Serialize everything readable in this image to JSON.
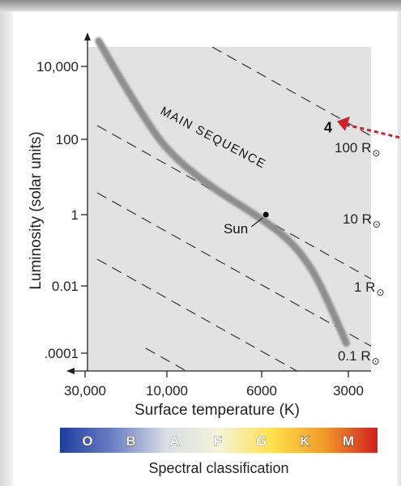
{
  "chart_data": {
    "type": "scatter",
    "xlabel": "Surface temperature (K)",
    "ylabel": "Luminosity (solar units)",
    "x_ticks": [
      "30,000",
      "10,000",
      "6000",
      "3000"
    ],
    "x_tick_values": [
      30000,
      10000,
      6000,
      3000
    ],
    "xlim": [
      40000,
      2500
    ],
    "x_scale": "log-reversed",
    "y_ticks": [
      "10,000",
      "100",
      "1",
      "0.01",
      ".0001"
    ],
    "y_tick_values": [
      10000,
      100,
      1,
      0.01,
      0.0001
    ],
    "ylim": [
      3e-05,
      100000
    ],
    "y_scale": "log",
    "grid": false,
    "series": [
      {
        "name": "MAIN SEQUENCE",
        "points": [
          {
            "x": 25000,
            "y": 50000
          },
          {
            "x": 20000,
            "y": 8000
          },
          {
            "x": 14000,
            "y": 500
          },
          {
            "x": 10000,
            "y": 50
          },
          {
            "x": 8000,
            "y": 6
          },
          {
            "x": 6200,
            "y": 1
          },
          {
            "x": 4800,
            "y": 0.2
          },
          {
            "x": 4000,
            "y": 0.03
          },
          {
            "x": 3500,
            "y": 0.003
          },
          {
            "x": 3050,
            "y": 0.0002
          }
        ]
      }
    ],
    "radius_lines": [
      {
        "label": "100 R",
        "symbol": "⊙",
        "radius": 100
      },
      {
        "label": "10 R",
        "symbol": "⊙",
        "radius": 10
      },
      {
        "label": "1 R",
        "symbol": "⊙",
        "radius": 1
      },
      {
        "label": "0.1 R",
        "symbol": "⊙",
        "radius": 0.1
      },
      {
        "label": "",
        "symbol": "",
        "radius": 0.01
      }
    ],
    "annotations": [
      {
        "text": "Sun",
        "x": 5800,
        "y": 1
      },
      {
        "text": "MAIN SEQUENCE"
      },
      {
        "text": "4",
        "x": 3000,
        "y": 230
      }
    ],
    "spectral_bar": {
      "title": "Spectral classification",
      "classes": [
        "O",
        "B",
        "A",
        "F",
        "G",
        "K",
        "M"
      ],
      "colors": [
        "#1f3d9e",
        "#6b7fc4",
        "#d9dde6",
        "#f5f3d8",
        "#ffe14d",
        "#f29a2a",
        "#d11f1f"
      ]
    }
  },
  "colors": {
    "plot_background": "#e2e2e2",
    "main_sequence": "#8e8e8e",
    "dash_lines": "#2a2a2a",
    "arrow": "#d0202a"
  }
}
